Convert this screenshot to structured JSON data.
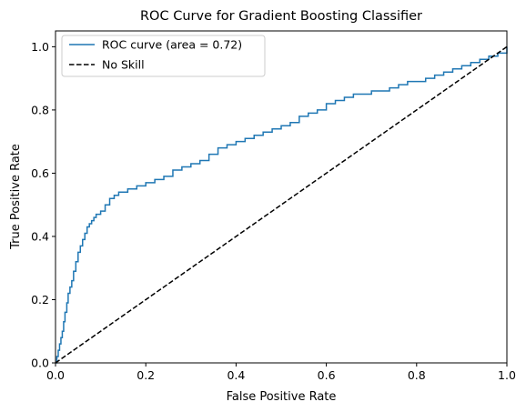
{
  "chart_data": {
    "type": "line",
    "title": "ROC Curve for Gradient Boosting Classifier",
    "xlabel": "False Positive Rate",
    "ylabel": "True Positive Rate",
    "xlim": [
      0.0,
      1.0
    ],
    "ylim": [
      0.0,
      1.05
    ],
    "x_ticks": [
      "0.0",
      "0.2",
      "0.4",
      "0.6",
      "0.8",
      "1.0"
    ],
    "y_ticks": [
      "0.0",
      "0.2",
      "0.4",
      "0.6",
      "0.8",
      "1.0"
    ],
    "grid": false,
    "legend_position": "top-left",
    "series": [
      {
        "name": "ROC curve (area = 0.72)",
        "color": "#1f77b4",
        "style": "solid",
        "x": [
          0.0,
          0.003,
          0.006,
          0.009,
          0.012,
          0.015,
          0.018,
          0.021,
          0.025,
          0.028,
          0.032,
          0.036,
          0.04,
          0.045,
          0.05,
          0.055,
          0.06,
          0.065,
          0.07,
          0.075,
          0.08,
          0.085,
          0.09,
          0.1,
          0.11,
          0.12,
          0.13,
          0.14,
          0.15,
          0.16,
          0.18,
          0.2,
          0.22,
          0.24,
          0.26,
          0.28,
          0.3,
          0.32,
          0.34,
          0.36,
          0.38,
          0.4,
          0.42,
          0.44,
          0.46,
          0.48,
          0.5,
          0.52,
          0.54,
          0.56,
          0.58,
          0.6,
          0.62,
          0.64,
          0.66,
          0.68,
          0.7,
          0.72,
          0.74,
          0.76,
          0.78,
          0.8,
          0.82,
          0.84,
          0.86,
          0.88,
          0.9,
          0.92,
          0.94,
          0.96,
          0.98,
          1.0
        ],
        "y": [
          0.0,
          0.02,
          0.04,
          0.06,
          0.08,
          0.1,
          0.13,
          0.16,
          0.19,
          0.22,
          0.24,
          0.26,
          0.29,
          0.32,
          0.35,
          0.37,
          0.39,
          0.41,
          0.43,
          0.44,
          0.45,
          0.46,
          0.47,
          0.48,
          0.5,
          0.52,
          0.53,
          0.54,
          0.54,
          0.55,
          0.56,
          0.57,
          0.58,
          0.59,
          0.61,
          0.62,
          0.63,
          0.64,
          0.66,
          0.68,
          0.69,
          0.7,
          0.71,
          0.72,
          0.73,
          0.74,
          0.75,
          0.76,
          0.78,
          0.79,
          0.8,
          0.82,
          0.83,
          0.84,
          0.85,
          0.85,
          0.86,
          0.86,
          0.87,
          0.88,
          0.89,
          0.89,
          0.9,
          0.91,
          0.92,
          0.93,
          0.94,
          0.95,
          0.96,
          0.97,
          0.98,
          1.0
        ]
      },
      {
        "name": "No Skill",
        "color": "#000000",
        "style": "dashed",
        "x": [
          0.0,
          1.0
        ],
        "y": [
          0.0,
          1.0
        ]
      }
    ]
  }
}
